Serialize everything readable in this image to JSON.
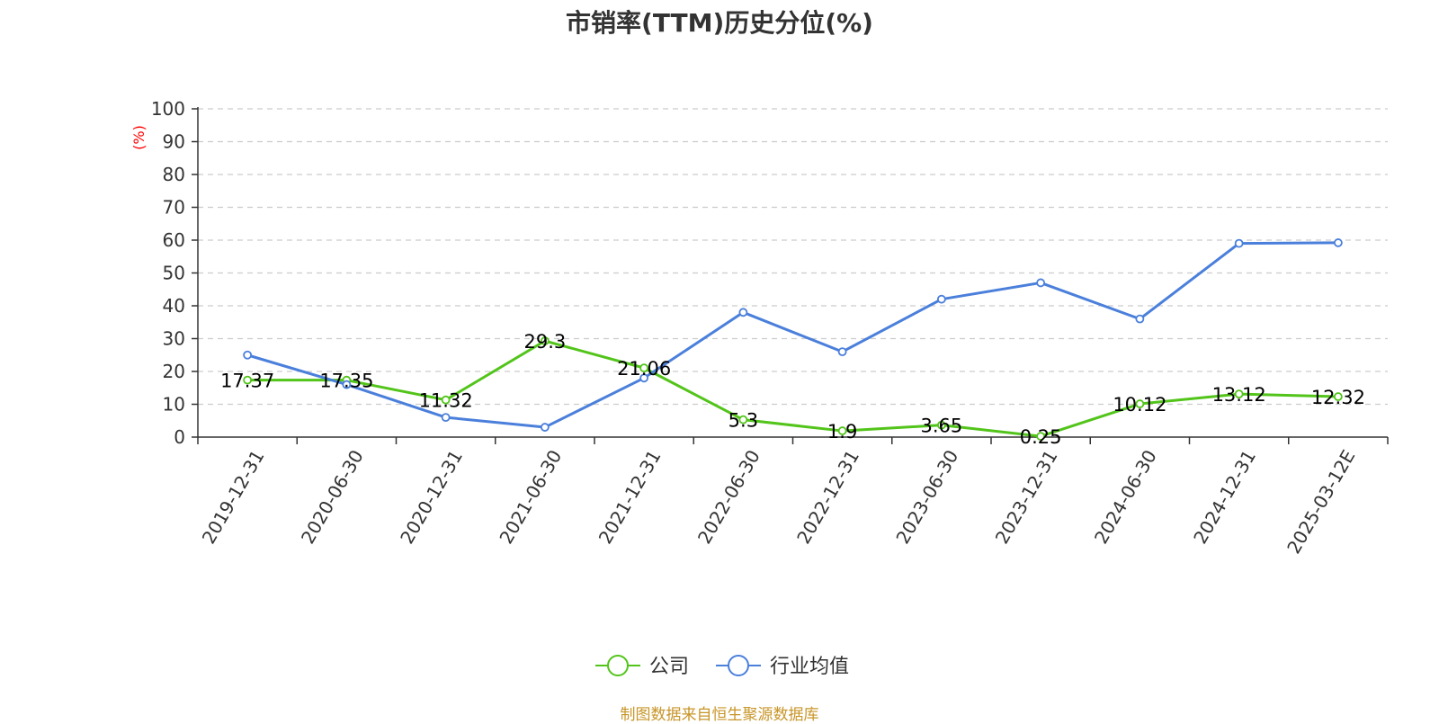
{
  "chart_data": {
    "type": "line",
    "title": "市销率(TTM)历史分位(%)",
    "ylabel": "(%)",
    "xlabel": "",
    "ylim": [
      0,
      100
    ],
    "yticks": [
      0,
      10,
      20,
      30,
      40,
      50,
      60,
      70,
      80,
      90,
      100
    ],
    "grid": true,
    "legend_position": "bottom-center",
    "categories": [
      "2019-12-31",
      "2020-06-30",
      "2020-12-31",
      "2021-06-30",
      "2021-12-31",
      "2022-06-30",
      "2022-12-31",
      "2023-06-30",
      "2023-12-31",
      "2024-06-30",
      "2024-12-31",
      "2025-03-12E"
    ],
    "series": [
      {
        "name": "公司",
        "color": "#52c41a",
        "show_labels": true,
        "labels": [
          "17.37",
          "17.35",
          "11.32",
          "29.3",
          "21.06",
          "5.3",
          "1.9",
          "3.65",
          "0.25",
          "10.12",
          "13.12",
          "12.32"
        ],
        "values": [
          17.37,
          17.35,
          11.32,
          29.3,
          21.06,
          5.3,
          1.9,
          3.65,
          0.25,
          10.12,
          13.12,
          12.32
        ]
      },
      {
        "name": "行业均值",
        "color": "#4a7fdb",
        "show_labels": false,
        "values": [
          25,
          16,
          6,
          3,
          18,
          38,
          26,
          42,
          47,
          36,
          59,
          59.2
        ]
      }
    ]
  },
  "footer": {
    "source": "制图数据来自恒生聚源数据库"
  }
}
